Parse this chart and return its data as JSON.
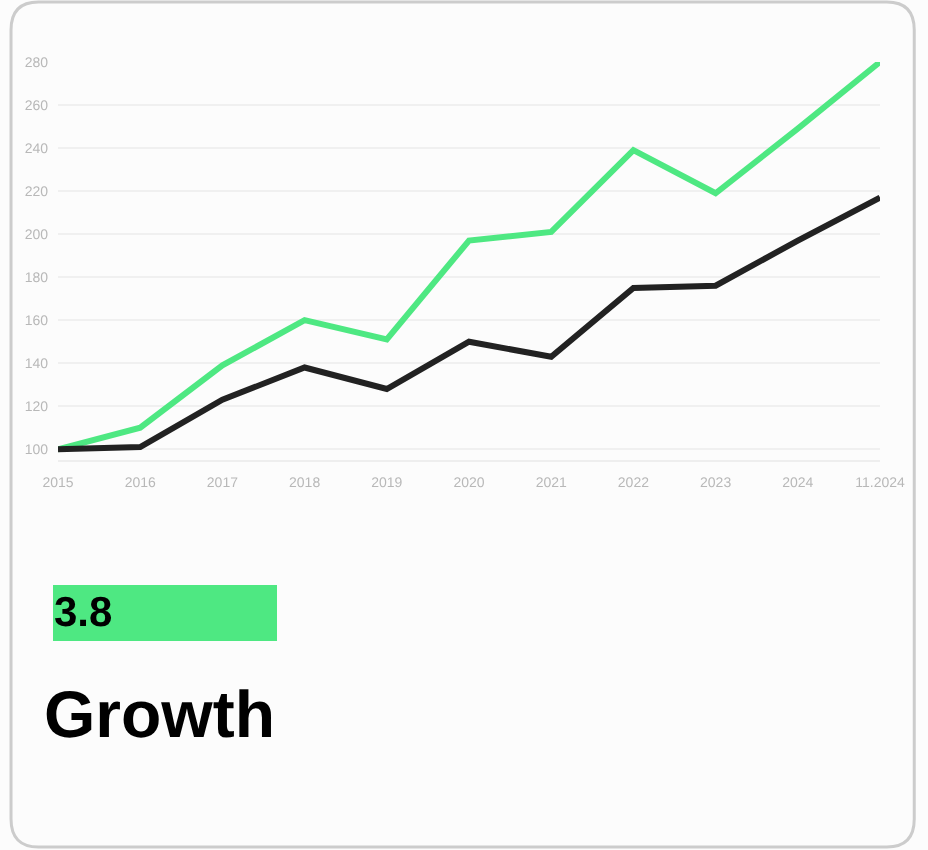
{
  "chart_data": {
    "type": "line",
    "title": "Growth",
    "annotations": [
      "3.8"
    ],
    "categories": [
      "2015",
      "2016",
      "2017",
      "2018",
      "2019",
      "2020",
      "2021",
      "2022",
      "2023",
      "2024",
      "11.2024"
    ],
    "series": [
      {
        "color": "#4ee882",
        "values": [
          100,
          110,
          139,
          160,
          151,
          197,
          201,
          239,
          219,
          249,
          280
        ]
      },
      {
        "color": "#222222",
        "values": [
          100,
          101,
          123,
          138,
          128,
          150,
          143,
          175,
          176,
          197,
          217
        ]
      }
    ],
    "ylim": [
      95,
      280
    ],
    "yticks": [
      100,
      120,
      140,
      160,
      180,
      200,
      220,
      240,
      260,
      280
    ],
    "grid": "y",
    "marker": "none",
    "line_style": "solid"
  }
}
